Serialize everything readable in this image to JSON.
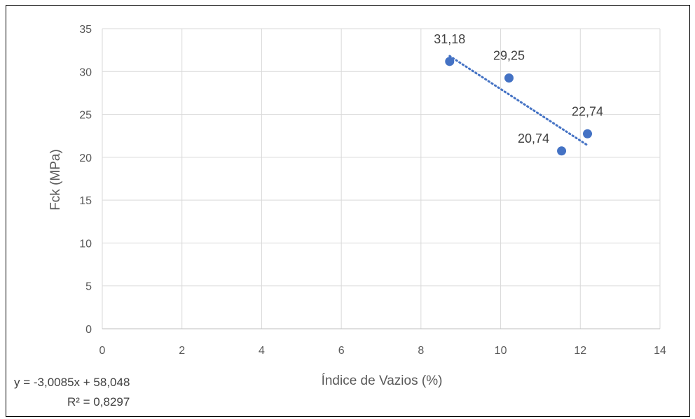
{
  "chart_data": {
    "type": "scatter",
    "xlabel": "Índice de Vazios (%)",
    "ylabel": "Fck (MPa)",
    "xlim": [
      0,
      14
    ],
    "ylim": [
      0,
      35
    ],
    "xticks": [
      0,
      2,
      4,
      6,
      8,
      10,
      12,
      14
    ],
    "yticks": [
      0,
      5,
      10,
      15,
      20,
      25,
      30,
      35
    ],
    "grid": true,
    "series": [
      {
        "points": [
          {
            "x": 8.72,
            "y": 31.18,
            "label": "31,18"
          },
          {
            "x": 10.21,
            "y": 29.25,
            "label": "29,25"
          },
          {
            "x": 11.53,
            "y": 20.74,
            "label": "20,74"
          },
          {
            "x": 12.18,
            "y": 22.74,
            "label": "22,74"
          }
        ],
        "color": "#4472C4"
      }
    ],
    "trendline": {
      "type": "linear",
      "slope": -3.0085,
      "intercept": 58.048,
      "x_range": [
        8.72,
        12.18
      ],
      "style": "dotted",
      "color": "#4472C4",
      "equation": "y = -3,0085x + 58,048",
      "r_squared": "R² = 0,8297"
    }
  }
}
